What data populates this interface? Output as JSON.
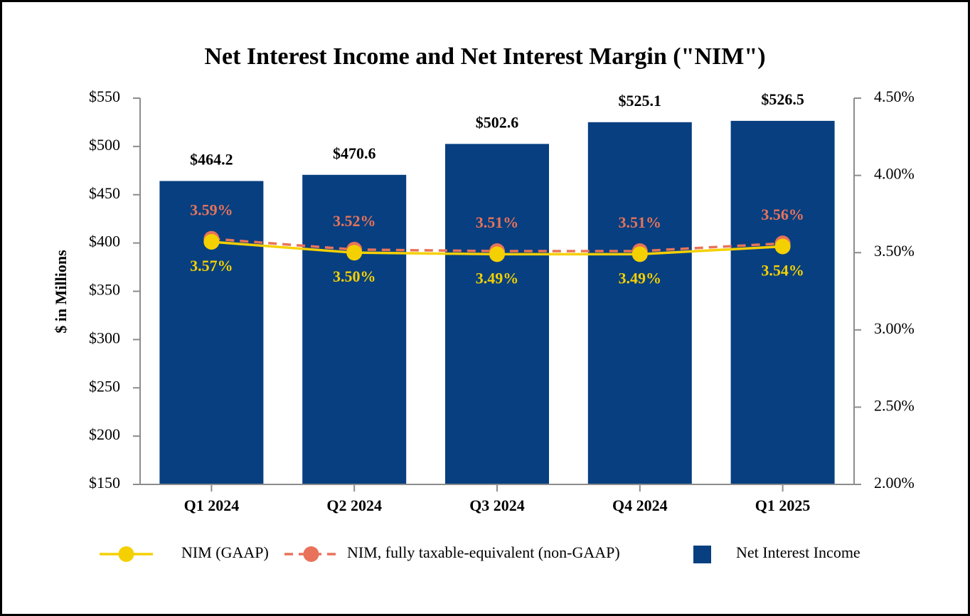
{
  "chart_data": {
    "type": "bar",
    "title": "Net Interest Income and Net Interest Margin (\"NIM\")",
    "y_label": "$ in Millions",
    "categories": [
      "Q1 2024",
      "Q2 2024",
      "Q3 2024",
      "Q4 2024",
      "Q1 2025"
    ],
    "ylim": [
      150,
      550
    ],
    "yticks": [
      {
        "value": 150,
        "label": "$150"
      },
      {
        "value": 200,
        "label": "$200"
      },
      {
        "value": 250,
        "label": "$250"
      },
      {
        "value": 300,
        "label": "$300"
      },
      {
        "value": 350,
        "label": "$350"
      },
      {
        "value": 400,
        "label": "$400"
      },
      {
        "value": 450,
        "label": "$450"
      },
      {
        "value": 500,
        "label": "$500"
      },
      {
        "value": 550,
        "label": "$550"
      }
    ],
    "y2lim": [
      2.0,
      4.5
    ],
    "y2ticks": [
      {
        "value": 2.0,
        "label": "2.00%"
      },
      {
        "value": 2.5,
        "label": "2.50%"
      },
      {
        "value": 3.0,
        "label": "3.00%"
      },
      {
        "value": 3.5,
        "label": "3.50%"
      },
      {
        "value": 4.0,
        "label": "4.00%"
      },
      {
        "value": 4.5,
        "label": "4.50%"
      }
    ],
    "series": [
      {
        "name": "Net Interest Income",
        "type": "bar",
        "color": "#073f80",
        "values": [
          464.2,
          470.6,
          502.6,
          525.1,
          526.5
        ],
        "value_labels": [
          "$464.2",
          "$470.6",
          "$502.6",
          "$525.1",
          "$526.5"
        ]
      },
      {
        "name": "NIM (GAAP)",
        "type": "line",
        "axis": "y2",
        "color": "#f5d000",
        "dashed": false,
        "values": [
          3.57,
          3.5,
          3.49,
          3.49,
          3.54
        ],
        "value_labels": [
          "3.57%",
          "3.50%",
          "3.49%",
          "3.49%",
          "3.54%"
        ]
      },
      {
        "name": "NIM, fully taxable-equivalent (non-GAAP)",
        "type": "line",
        "axis": "y2",
        "color": "#e8735a",
        "dashed": true,
        "values": [
          3.59,
          3.52,
          3.51,
          3.51,
          3.56
        ],
        "value_labels": [
          "3.59%",
          "3.52%",
          "3.51%",
          "3.51%",
          "3.56%"
        ]
      }
    ]
  }
}
